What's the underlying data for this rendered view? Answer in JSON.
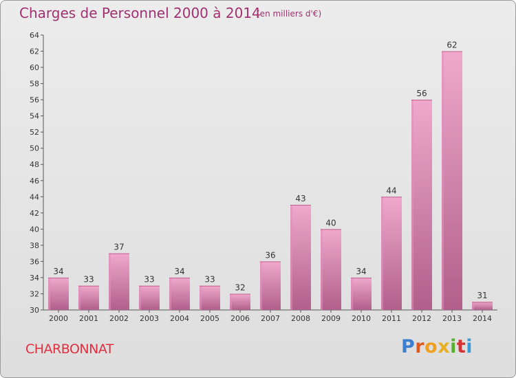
{
  "header": {
    "title": "Charges de Personnel 2000 à 2014",
    "subtitle": "(en milliers d'€)"
  },
  "footer": {
    "commune": "CHARBONNAT",
    "logo_text": "Proxiti",
    "logo_colors": [
      "#3a7fd0",
      "#e05a20",
      "#f0a020",
      "#e8b020",
      "#58b030",
      "#d83030",
      "#3a9ad8"
    ]
  },
  "colors": {
    "bar_top": "#f0a8cc",
    "bar_bottom": "#b0608a",
    "bar_highlight": "#e090bc",
    "text": "#333333",
    "grid_tick": "#555555"
  },
  "chart_data": {
    "type": "bar",
    "title": "Charges de Personnel 2000 à 2014",
    "subtitle": "(en milliers d'€)",
    "categories": [
      "2000",
      "2001",
      "2002",
      "2003",
      "2004",
      "2005",
      "2006",
      "2007",
      "2008",
      "2009",
      "2010",
      "2011",
      "2012",
      "2013",
      "2014"
    ],
    "values": [
      34,
      33,
      37,
      33,
      34,
      33,
      32,
      36,
      43,
      40,
      34,
      44,
      56,
      62,
      31
    ],
    "ylim": [
      30,
      64
    ],
    "yticks": [
      30,
      32,
      34,
      36,
      38,
      40,
      42,
      44,
      46,
      48,
      50,
      52,
      54,
      56,
      58,
      60,
      62,
      64
    ],
    "xlabel": "",
    "ylabel": "",
    "grid": false,
    "data_labels": true
  }
}
